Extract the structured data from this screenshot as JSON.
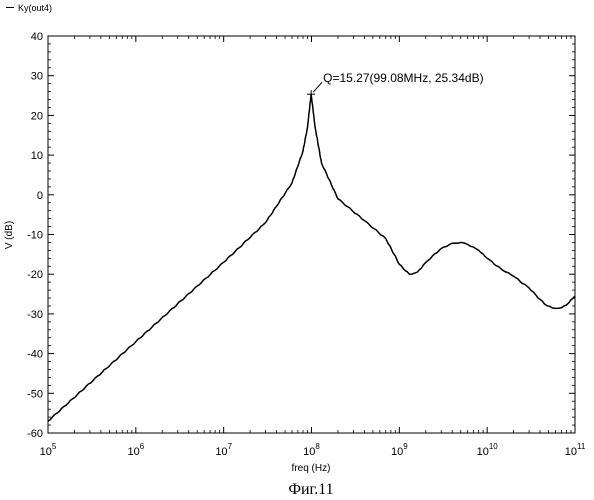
{
  "chart_data": {
    "type": "line",
    "title": "",
    "xlabel": "freq (Hz)",
    "ylabel": "V (dB)",
    "x_scale": "log",
    "xlim": [
      100000,
      100000000000
    ],
    "ylim": [
      -60,
      40
    ],
    "grid": false,
    "legend_position": "top-left",
    "x_tick_labels": [
      {
        "base": "10",
        "exp": "5"
      },
      {
        "base": "10",
        "exp": "6"
      },
      {
        "base": "10",
        "exp": "7"
      },
      {
        "base": "10",
        "exp": "8"
      },
      {
        "base": "10",
        "exp": "9"
      },
      {
        "base": "10",
        "exp": "10"
      },
      {
        "base": "10",
        "exp": "11"
      }
    ],
    "x_tick_values": [
      100000,
      1000000,
      10000000,
      100000000,
      1000000000,
      10000000000,
      100000000000
    ],
    "y_ticks": [
      40,
      30,
      20,
      10,
      0,
      -10,
      -20,
      -30,
      -40,
      -50,
      -60
    ],
    "y_tick_labels": [
      "40",
      "30",
      "20",
      "10",
      "0",
      "-10",
      "-20",
      "-30",
      "-40",
      "-50",
      "-60"
    ],
    "series": [
      {
        "name": "Ky(out4)",
        "color": "#000000",
        "x": [
          100000,
          1000000,
          10000000,
          30000000,
          60000000,
          80000000,
          90000000,
          99080000,
          110000000,
          130000000,
          200000000,
          400000000,
          700000000,
          1000000000,
          1300000000,
          1600000000,
          2000000000,
          3000000000,
          4000000000,
          5000000000,
          6000000000,
          8000000000,
          10000000000,
          15000000000,
          20000000000,
          30000000000,
          45000000000,
          55000000000,
          70000000000,
          85000000000,
          100000000000
        ],
        "y": [
          -57,
          -37,
          -17,
          -7,
          3,
          11,
          17,
          25.34,
          17,
          8,
          -1,
          -6.5,
          -11,
          -17.5,
          -20,
          -19.5,
          -17,
          -13.5,
          -12.2,
          -12,
          -12.5,
          -14,
          -16,
          -19,
          -20.5,
          -23.5,
          -27.5,
          -28.5,
          -28.5,
          -27.2,
          -25.5
        ]
      }
    ],
    "annotations": [
      {
        "text": "Q=15.27(99.08MHz, 25.34dB)",
        "x": 99080000,
        "y": 25.34
      }
    ]
  },
  "caption": "Фиг.11"
}
